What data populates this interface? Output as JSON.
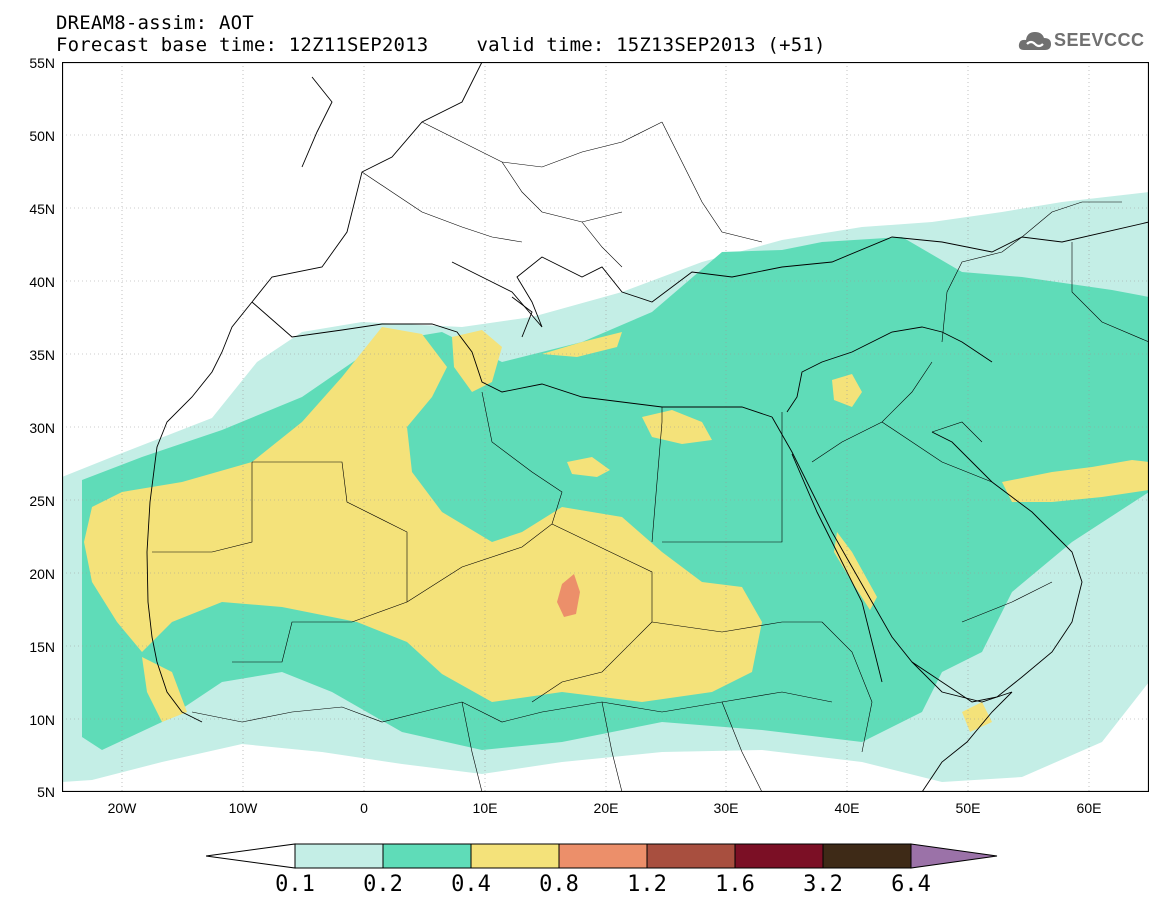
{
  "title": {
    "line1": "DREAM8-assim: AOT",
    "base_label": "Forecast base time: 12Z11SEP2013",
    "valid_label": "valid time: 15Z13SEP2013 (+51)"
  },
  "logo": {
    "text": "SEEVCCC",
    "icon": "cloud-icon"
  },
  "axes": {
    "lon_range": [
      -25,
      65
    ],
    "lat_range": [
      5,
      55
    ],
    "lat_ticks": [
      "55N",
      "50N",
      "45N",
      "40N",
      "35N",
      "30N",
      "25N",
      "20N",
      "15N",
      "10N",
      "5N"
    ],
    "lon_ticks": [
      "20W",
      "10W",
      "0",
      "10E",
      "20E",
      "30E",
      "40E",
      "50E",
      "60E"
    ],
    "grid": true
  },
  "colorbar": {
    "labels": [
      "0.1",
      "0.2",
      "0.4",
      "0.8",
      "1.2",
      "1.6",
      "3.2",
      "6.4"
    ],
    "colors": [
      "#ffffff",
      "#c4eee6",
      "#5fdcb8",
      "#f4e27a",
      "#ec8f6a",
      "#a84f3f",
      "#7b0f25",
      "#3e2a17",
      "#9b72a8"
    ]
  },
  "field_colors": {
    "c01": "#c4eee6",
    "c02": "#5fdcb8",
    "c04": "#f4e27a",
    "c08": "#ec8f6a",
    "border": "#000000"
  }
}
